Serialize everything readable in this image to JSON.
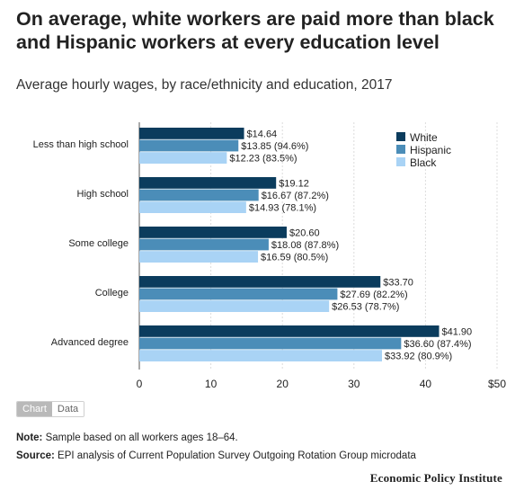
{
  "title": "On average, white workers are paid more than black and Hispanic workers at every education level",
  "subtitle": "Average hourly wages, by race/ethnicity and education, 2017",
  "toggle": {
    "chart": "Chart",
    "data": "Data"
  },
  "note": {
    "label": "Note:",
    "text": "Sample based on all workers ages 18–64."
  },
  "source": {
    "label": "Source:",
    "text": "EPI analysis of Current Population Survey Outgoing Rotation Group microdata"
  },
  "logo": "Economic Policy Institute",
  "chart_data": {
    "type": "bar",
    "orientation": "horizontal",
    "categories": [
      "Less than high school",
      "High school",
      "Some college",
      "College",
      "Advanced degree"
    ],
    "series": [
      {
        "name": "White",
        "color": "#0b3c5d",
        "values": [
          14.64,
          19.12,
          20.6,
          33.7,
          41.9
        ],
        "labels": [
          "$14.64",
          "$19.12",
          "$20.60",
          "$33.70",
          "$41.90"
        ]
      },
      {
        "name": "Hispanic",
        "color": "#4b8db8",
        "values": [
          13.85,
          16.67,
          18.08,
          27.69,
          36.6
        ],
        "labels": [
          "$13.85 (94.6%)",
          "$16.67 (87.2%)",
          "$18.08 (87.8%)",
          "$27.69 (82.2%)",
          "$36.60 (87.4%)"
        ]
      },
      {
        "name": "Black",
        "color": "#a9d3f5",
        "values": [
          12.23,
          14.93,
          16.59,
          26.53,
          33.92
        ],
        "labels": [
          "$12.23 (83.5%)",
          "$14.93 (78.1%)",
          "$16.59 (80.5%)",
          "$26.53 (78.7%)",
          "$33.92 (80.9%)"
        ]
      }
    ],
    "xlim": [
      0,
      50
    ],
    "xticks": [
      "0",
      "10",
      "20",
      "30",
      "40",
      "$50"
    ],
    "legend": "top-right",
    "grid": true
  }
}
